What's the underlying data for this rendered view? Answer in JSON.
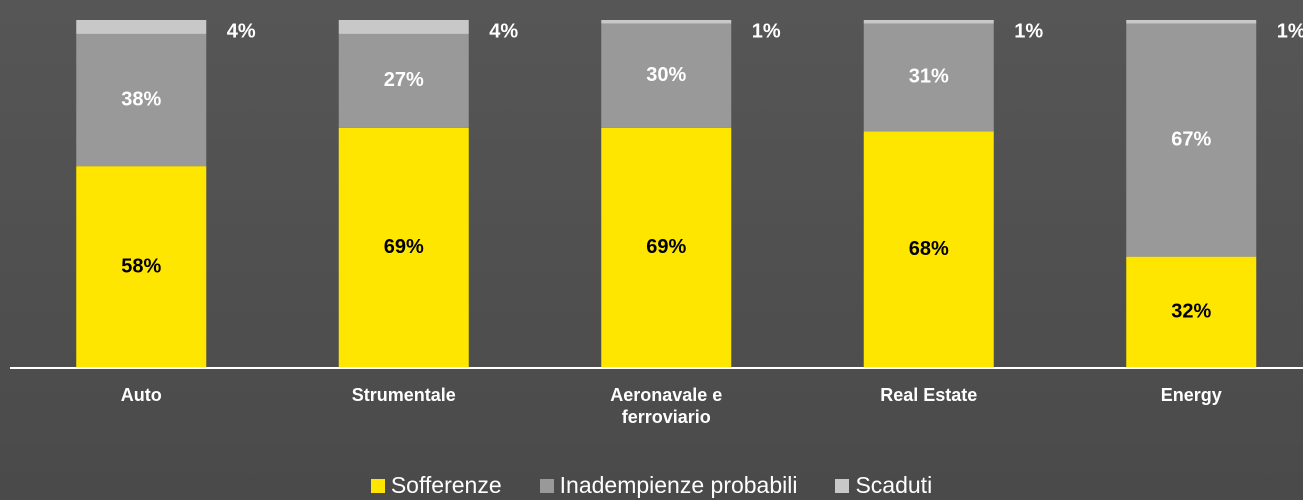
{
  "chart_data": {
    "type": "stacked_bar",
    "categories": [
      "Auto",
      "Strumentale",
      "Aeronavale e ferroviario",
      "Real Estate",
      "Energy"
    ],
    "ylim": [
      0,
      100
    ],
    "series": [
      {
        "name": "Sofferenze",
        "color": "#ffe600",
        "values": [
          58,
          69,
          69,
          68,
          32
        ],
        "value_labels": [
          "58%",
          "69%",
          "69%",
          "68%",
          "32%"
        ]
      },
      {
        "name": "Inadempienze probabili",
        "color": "#999999",
        "values": [
          38,
          27,
          30,
          31,
          67
        ],
        "value_labels": [
          "38%",
          "27%",
          "30%",
          "31%",
          "67%"
        ]
      },
      {
        "name": "Scaduti",
        "color": "#c8c8c8",
        "values": [
          4,
          4,
          1,
          1,
          1
        ],
        "value_labels": [
          "4%",
          "4%",
          "1%",
          "1%",
          "1%"
        ]
      }
    ]
  }
}
